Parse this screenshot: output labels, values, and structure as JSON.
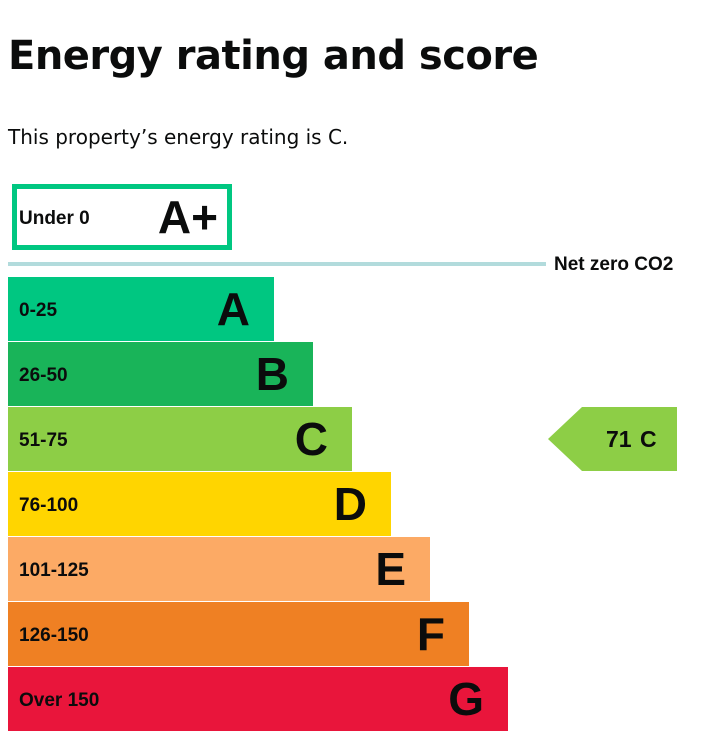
{
  "page": {
    "title": "Energy rating and score",
    "summary": "This property’s energy rating is C."
  },
  "chart_data": {
    "type": "bar",
    "categories": [
      "A+",
      "A",
      "B",
      "C",
      "D",
      "E",
      "F",
      "G"
    ],
    "bands": [
      {
        "letter": "A+",
        "range": "Under 0",
        "value": 1,
        "color": "#ffffff",
        "border": "#00c781"
      },
      {
        "letter": "A",
        "range": "0-25",
        "value": 2,
        "color": "#00c781"
      },
      {
        "letter": "B",
        "range": "26-50",
        "value": 3,
        "color": "#19b459"
      },
      {
        "letter": "C",
        "range": "51-75",
        "value": 4,
        "color": "#8dce46"
      },
      {
        "letter": "D",
        "range": "76-100",
        "value": 5,
        "color": "#ffd500"
      },
      {
        "letter": "E",
        "range": "101-125",
        "value": 6,
        "color": "#fcaa65"
      },
      {
        "letter": "F",
        "range": "126-150",
        "value": 7,
        "color": "#ef8023"
      },
      {
        "letter": "G",
        "range": "Over 150",
        "value": 8,
        "color": "#e9153b"
      }
    ],
    "net_zero": {
      "label": "Net zero CO2",
      "color": "#b2dbdc"
    },
    "current": {
      "score": 71,
      "rating": "C",
      "color": "#8dce46"
    }
  }
}
